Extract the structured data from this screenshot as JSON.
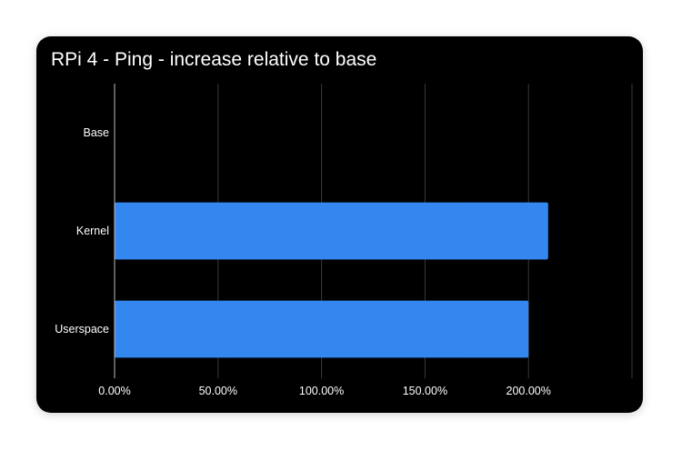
{
  "chart_data": {
    "type": "bar",
    "orientation": "horizontal",
    "title": "RPi 4 - Ping - increase relative to base",
    "categories": [
      "Base",
      "Kernel",
      "Userspace"
    ],
    "values": [
      0,
      209.5,
      200
    ],
    "xlabel": "",
    "ylabel": "",
    "xlim": [
      0,
      250
    ],
    "ticks": [
      0,
      50,
      100,
      150,
      200
    ],
    "tick_labels": [
      "0.00%",
      "50.00%",
      "100.00%",
      "150.00%",
      "200.00%"
    ],
    "grid": true,
    "colors": {
      "bar": "#3387EE",
      "background": "#000000",
      "grid": "#3a3a3a",
      "text": "#ffffff"
    }
  }
}
